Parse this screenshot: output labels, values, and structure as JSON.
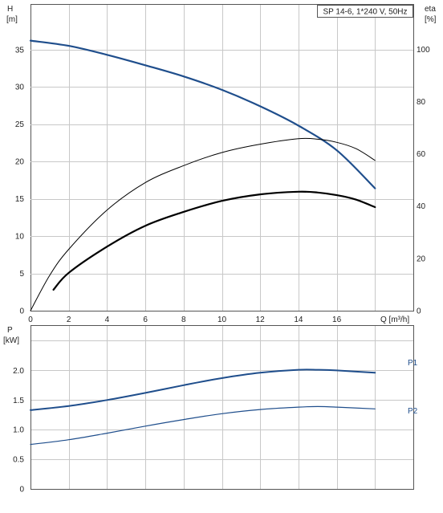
{
  "chart_data": [
    {
      "type": "line",
      "title": "SP 14-6, 1*240 V, 50Hz",
      "ylabel": "H",
      "yunit": "[m]",
      "y2label": "eta",
      "y2unit": "[%]",
      "xlabel": "Q [m³/h]",
      "xlim": [
        0,
        20
      ],
      "ylim": [
        0,
        41
      ],
      "y2lim": [
        0,
        117
      ],
      "xticks": [
        0,
        2,
        4,
        6,
        8,
        10,
        12,
        14,
        16
      ],
      "yticks": [
        0,
        5,
        10,
        15,
        20,
        25,
        30,
        35
      ],
      "y2ticks": [
        0,
        20,
        40,
        60,
        80,
        100
      ],
      "grid": true,
      "series": [
        {
          "axis": "left",
          "color": "#1f4e8c",
          "x": [
            0,
            2,
            4,
            6,
            8,
            10,
            12,
            14,
            16,
            18
          ],
          "values": [
            36.2,
            35.5,
            34.3,
            32.9,
            31.4,
            29.6,
            27.4,
            24.8,
            21.5,
            16.4
          ]
        },
        {
          "axis": "right",
          "color": "#000000",
          "x": [
            0,
            1,
            2,
            4,
            6,
            8,
            10,
            12,
            14,
            15,
            16,
            17,
            18
          ],
          "values": [
            0,
            13.5,
            23.5,
            38.5,
            49,
            55.5,
            60.5,
            63.7,
            65.8,
            65.6,
            64.4,
            62,
            57.5
          ]
        },
        {
          "axis": "right",
          "color": "#000000",
          "x": [
            1.2,
            2,
            4,
            6,
            8,
            10,
            12,
            14,
            15,
            16,
            17,
            18
          ],
          "values": [
            8,
            14.5,
            24.5,
            32.5,
            37.8,
            42,
            44.5,
            45.5,
            45.2,
            44.2,
            42.5,
            39.6
          ]
        }
      ]
    },
    {
      "type": "line",
      "ylabel": "P",
      "yunit": "[kW]",
      "xlim": [
        0,
        20
      ],
      "ylim": [
        0,
        2.75
      ],
      "yticks": [
        0,
        0.5,
        1.0,
        1.5,
        2.0
      ],
      "ytick_labels": [
        "0",
        "0.5",
        "1.0",
        "1.5",
        "2.0"
      ],
      "grid": true,
      "series": [
        {
          "name": "P1",
          "color": "#1f4e8c",
          "x": [
            0,
            2,
            4,
            6,
            8,
            10,
            12,
            14,
            15,
            16,
            18
          ],
          "values": [
            1.33,
            1.4,
            1.5,
            1.62,
            1.75,
            1.87,
            1.96,
            2.01,
            2.01,
            2.0,
            1.96
          ]
        },
        {
          "name": "P2",
          "color": "#1f4e8c",
          "x": [
            0,
            2,
            4,
            6,
            8,
            10,
            12,
            14,
            15,
            16,
            18
          ],
          "values": [
            0.75,
            0.83,
            0.94,
            1.06,
            1.17,
            1.27,
            1.34,
            1.38,
            1.39,
            1.38,
            1.35
          ]
        }
      ]
    }
  ]
}
